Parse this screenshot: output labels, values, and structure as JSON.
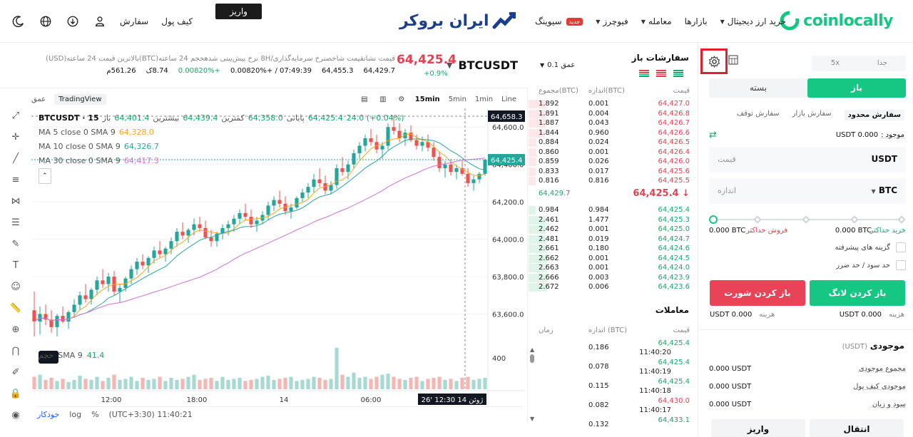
{
  "header": {
    "brand": "coinlocally",
    "nav": [
      {
        "label": "خرید ارز دیجیتال",
        "caret": true
      },
      {
        "label": "بازارها",
        "caret": false
      },
      {
        "label": "معامله",
        "caret": true
      },
      {
        "label": "فیوچرز",
        "caret": true
      },
      {
        "label": "سیوینگ",
        "caret": false,
        "badge": "جدید"
      }
    ],
    "center_logo": "ایران بروکر",
    "deposit_button": "واریز",
    "wallet_link": "کیف پول",
    "orders_link": "سفارش"
  },
  "ticker": {
    "pair": "BTCUSDT",
    "last_price": "64,425.4",
    "change_pct": "+0.9%",
    "stat_labels": "قیمت نشانقیمت شاخصنرخ سرمایه‌گذاری/8H  نرخ پیش‌بینی شدهحجم 24 ساعته(BTC)بالاترین قیمت 24 ساعته(USD)",
    "stats": [
      "64,429.7",
      "64,455.3",
      "07:49:39 / +0.00820%",
      "+0.00820%",
      "8.74ک",
      "561.26م"
    ]
  },
  "chart": {
    "toolbar_left": [
      "عمق",
      "TradingView"
    ],
    "intervals": [
      "15min",
      "5min",
      "1min",
      "Line"
    ],
    "active_interval": "15min",
    "ohlc_line": {
      "symbol": "BTCUSDT · 15",
      "open_label": "باز",
      "open": "64,401.4",
      "high_label": "بیشترین",
      "high": "64,439.4",
      "low_label": "کمترین",
      "low": "64,358.0",
      "close_label": "پایانی",
      "close": "64,425.4",
      "change": "24.0 (+0.04%)"
    },
    "ma_lines": [
      {
        "label": "MA 5 close 0 SMA 9",
        "value": "64,328.0",
        "color": "#f5a623"
      },
      {
        "label": "MA 10 close 0 SMA 9",
        "value": "64,326.7",
        "color": "#26a69a"
      },
      {
        "label": "MA 30 close 0 SMA 9",
        "value": "64,417.3",
        "color": "#d070d8"
      }
    ],
    "volume_label": "حجم",
    "volume_sma": "SMA 9",
    "volume_value": "41.4",
    "price_ticks": [
      "64,600.0",
      "64,400.0",
      "64,200.0",
      "64,000.0",
      "63,800.0",
      "63,600.0"
    ],
    "volume_tick": "400",
    "crosshair_price": "64,658.3",
    "current_price_tag": "64,425.4",
    "time_ticks": [
      "12:00",
      "18:00",
      "14",
      "06:00"
    ],
    "crosshair_time": "26' ژوئن 14 12:30",
    "bottom": {
      "auto": "خودکار",
      "log": "log",
      "pct": "%",
      "tz": "(UTC+3:30) 11:40:21"
    }
  },
  "orderbook": {
    "title": "سفارشات باز",
    "depth": "عمق 0.1",
    "headers": {
      "price": "قیمت",
      "size": "اندازه(BTC)",
      "total": "مجموع(BTC)"
    },
    "asks": [
      {
        "price": "64,427.0",
        "size": "0.001",
        "total": "1.892",
        "depth": 0.92
      },
      {
        "price": "64,426.8",
        "size": "0.004",
        "total": "1.891",
        "depth": 0.92
      },
      {
        "price": "64,426.7",
        "size": "0.043",
        "total": "1.887",
        "depth": 0.91
      },
      {
        "price": "64,426.6",
        "size": "0.960",
        "total": "1.844",
        "depth": 0.89
      },
      {
        "price": "64,426.5",
        "size": "0.024",
        "total": "0.884",
        "depth": 0.43
      },
      {
        "price": "64,426.4",
        "size": "0.001",
        "total": "0.860",
        "depth": 0.42
      },
      {
        "price": "64,426.0",
        "size": "0.026",
        "total": "0.859",
        "depth": 0.42
      },
      {
        "price": "64,425.6",
        "size": "0.017",
        "total": "0.833",
        "depth": 0.4
      },
      {
        "price": "64,425.5",
        "size": "0.816",
        "total": "0.816",
        "depth": 0.4
      }
    ],
    "mid_left": "64,429.7",
    "mid_price": "64,425.4",
    "bids": [
      {
        "price": "64,425.4",
        "size": "0.984",
        "total": "0.984",
        "depth": 0.37
      },
      {
        "price": "64,425.3",
        "size": "1.477",
        "total": "2.461",
        "depth": 0.92
      },
      {
        "price": "64,425.0",
        "size": "0.001",
        "total": "2.462",
        "depth": 0.92
      },
      {
        "price": "64,424.7",
        "size": "0.019",
        "total": "2.481",
        "depth": 0.93
      },
      {
        "price": "64,424.6",
        "size": "0.180",
        "total": "2.661",
        "depth": 0.99
      },
      {
        "price": "64,424.5",
        "size": "0.001",
        "total": "2.662",
        "depth": 0.99
      },
      {
        "price": "64,424.0",
        "size": "0.001",
        "total": "2.663",
        "depth": 0.99
      },
      {
        "price": "64,423.9",
        "size": "0.003",
        "total": "2.666",
        "depth": 0.99
      },
      {
        "price": "64,423.6",
        "size": "0.006",
        "total": "2.672",
        "depth": 1.0
      }
    ],
    "trades_title": "معاملات",
    "trade_headers": {
      "price": "قیمت",
      "size": "اندازه (BTC)",
      "time": "زمان"
    },
    "trades": [
      {
        "price": "64,425.4",
        "size": "0.186",
        "time": "11:40:20",
        "side": "buy"
      },
      {
        "price": "64,425.4",
        "size": "0.078",
        "time": "11:40:19",
        "side": "buy"
      },
      {
        "price": "64,425.4",
        "size": "0.115",
        "time": "11:40:18",
        "side": "buy"
      },
      {
        "price": "64,430.0",
        "size": "0.082",
        "time": "11:40:17",
        "side": "sell"
      },
      {
        "price": "64,433.1",
        "size": "0.132",
        "time": "",
        "side": "buy"
      }
    ]
  },
  "orderform": {
    "leverage_tabs": [
      "جدا",
      "5x"
    ],
    "sides": {
      "buy": "باز",
      "sell": "بسته"
    },
    "order_types": [
      "سفارش محدود",
      "سفارش بازار",
      "سفارش توقف"
    ],
    "available_label": "موجود :",
    "available_value": "0.000 USDT",
    "price_placeholder": "قیمت",
    "price_unit": "USDT",
    "size_placeholder": "اندازه",
    "size_unit": "BTC",
    "max_buy_label": "خرید حداکثر",
    "max_buy_value": "0.000 BTC",
    "max_sell_label": "فروش حداکثر",
    "max_sell_value": "0.000 BTC",
    "advanced_label": "گزینه های پیشرفته",
    "tpsl_label": "حد سود / حد ضرر",
    "open_long": "باز کردن لانگ",
    "open_short": "باز کردن شورت",
    "fee_label": "هزینه",
    "fee_long": "0.000 USDT",
    "fee_short": "0.000 USDT",
    "balance_title": "موجودی",
    "balance_unit": "(USDT)",
    "balance_rows": [
      {
        "label": "مجموع موجودی",
        "value": "0.000 USDT"
      },
      {
        "label": "موجودی کیف پول",
        "value": "0.000 USDT"
      },
      {
        "label": "سود و زیان",
        "value": "0.000 USDT"
      }
    ],
    "bottom_tabs": [
      "انتقال",
      "واریز"
    ]
  },
  "colors": {
    "up": "#26a69a",
    "down": "#ef5350",
    "accent": "#16c784",
    "ask": "#e64152"
  },
  "candles": [
    [
      63620,
      63720,
      63480,
      63560
    ],
    [
      63560,
      63640,
      63490,
      63600
    ],
    [
      63600,
      63650,
      63540,
      63570
    ],
    [
      63570,
      63620,
      63500,
      63530
    ],
    [
      63530,
      63600,
      63480,
      63590
    ],
    [
      63590,
      63640,
      63550,
      63560
    ],
    [
      63560,
      63620,
      63520,
      63610
    ],
    [
      63610,
      63680,
      63580,
      63650
    ],
    [
      63650,
      63720,
      63620,
      63700
    ],
    [
      63700,
      63760,
      63660,
      63680
    ],
    [
      63680,
      63740,
      63650,
      63730
    ],
    [
      63730,
      63800,
      63700,
      63780
    ],
    [
      63780,
      63840,
      63740,
      63760
    ],
    [
      63760,
      63820,
      63720,
      63800
    ],
    [
      63800,
      63830,
      63700,
      63720
    ],
    [
      63720,
      63760,
      63660,
      63740
    ],
    [
      63740,
      63800,
      63720,
      63790
    ],
    [
      63790,
      63860,
      63760,
      63840
    ],
    [
      63840,
      63900,
      63810,
      63880
    ],
    [
      63880,
      63920,
      63840,
      63860
    ],
    [
      63860,
      63910,
      63820,
      63900
    ],
    [
      63900,
      63960,
      63870,
      63940
    ],
    [
      63940,
      63990,
      63900,
      63920
    ],
    [
      63920,
      63960,
      63880,
      63950
    ],
    [
      63950,
      64010,
      63920,
      63990
    ],
    [
      63990,
      64060,
      63960,
      64040
    ],
    [
      64040,
      64090,
      64000,
      64020
    ],
    [
      64020,
      64060,
      63980,
      64050
    ],
    [
      64050,
      64110,
      64020,
      64080
    ],
    [
      64080,
      64120,
      64040,
      64060
    ],
    [
      64060,
      64100,
      64000,
      64010
    ],
    [
      64010,
      64050,
      63960,
      63990
    ],
    [
      63990,
      64040,
      63960,
      64030
    ],
    [
      64030,
      64080,
      64000,
      64060
    ],
    [
      64060,
      64100,
      64020,
      64080
    ],
    [
      64080,
      64130,
      64040,
      64110
    ],
    [
      64110,
      64160,
      64080,
      64140
    ],
    [
      64140,
      64190,
      64100,
      64120
    ],
    [
      64120,
      64160,
      64060,
      64080
    ],
    [
      64080,
      64120,
      64040,
      64100
    ],
    [
      64100,
      64150,
      64080,
      64130
    ],
    [
      64130,
      64200,
      64100,
      64180
    ],
    [
      64180,
      64230,
      64150,
      64210
    ],
    [
      64210,
      64260,
      64170,
      64190
    ],
    [
      64190,
      64230,
      64130,
      64150
    ],
    [
      64150,
      64190,
      64110,
      64170
    ],
    [
      64170,
      64230,
      64160,
      64220
    ],
    [
      64220,
      64270,
      64200,
      64250
    ],
    [
      64250,
      64300,
      64220,
      64280
    ],
    [
      64280,
      64350,
      64250,
      64320
    ],
    [
      64320,
      64380,
      64280,
      64300
    ],
    [
      64300,
      64340,
      64240,
      64260
    ],
    [
      64260,
      64310,
      64240,
      64290
    ],
    [
      64290,
      64400,
      64270,
      64380
    ],
    [
      64380,
      64440,
      64340,
      64360
    ],
    [
      64360,
      64420,
      64320,
      64400
    ],
    [
      64400,
      64480,
      64380,
      64460
    ],
    [
      64460,
      64520,
      64430,
      64500
    ],
    [
      64500,
      64560,
      64470,
      64540
    ],
    [
      64540,
      64590,
      64500,
      64520
    ],
    [
      64520,
      64560,
      64460,
      64480
    ],
    [
      64480,
      64520,
      64430,
      64500
    ],
    [
      64500,
      64620,
      64480,
      64600
    ],
    [
      64600,
      64660,
      64560,
      64580
    ],
    [
      64580,
      64620,
      64520,
      64540
    ],
    [
      64540,
      64590,
      64500,
      64570
    ],
    [
      64570,
      64610,
      64520,
      64530
    ],
    [
      64530,
      64560,
      64480,
      64500
    ],
    [
      64500,
      64550,
      64470,
      64520
    ],
    [
      64520,
      64560,
      64470,
      64490
    ],
    [
      64490,
      64520,
      64420,
      64440
    ],
    [
      64440,
      64470,
      64360,
      64380
    ],
    [
      64380,
      64420,
      64330,
      64400
    ],
    [
      64400,
      64430,
      64340,
      64360
    ],
    [
      64360,
      64400,
      64320,
      64380
    ],
    [
      64380,
      64420,
      64340,
      64350
    ],
    [
      64350,
      64380,
      64280,
      64300
    ],
    [
      64300,
      64340,
      64260,
      64320
    ],
    [
      64320,
      64360,
      64300,
      64350
    ],
    [
      64350,
      64430,
      64340,
      64425
    ]
  ],
  "volumes": [
    60,
    70,
    45,
    55,
    40,
    50,
    35,
    45,
    65,
    50,
    45,
    60,
    40,
    55,
    70,
    45,
    50,
    60,
    40,
    55,
    45,
    50,
    60,
    40,
    55,
    45,
    50,
    60,
    70,
    45,
    50,
    55,
    40,
    60,
    45,
    50,
    55,
    40,
    45,
    50,
    60,
    65,
    45,
    50,
    55,
    60,
    40,
    45,
    50,
    60,
    55,
    45,
    50,
    200,
    70,
    60,
    80,
    55,
    60,
    50,
    60,
    70,
    75,
    60,
    50,
    45,
    55,
    60,
    40,
    50,
    55,
    60,
    45,
    50,
    40,
    55,
    60,
    45,
    50,
    55
  ]
}
